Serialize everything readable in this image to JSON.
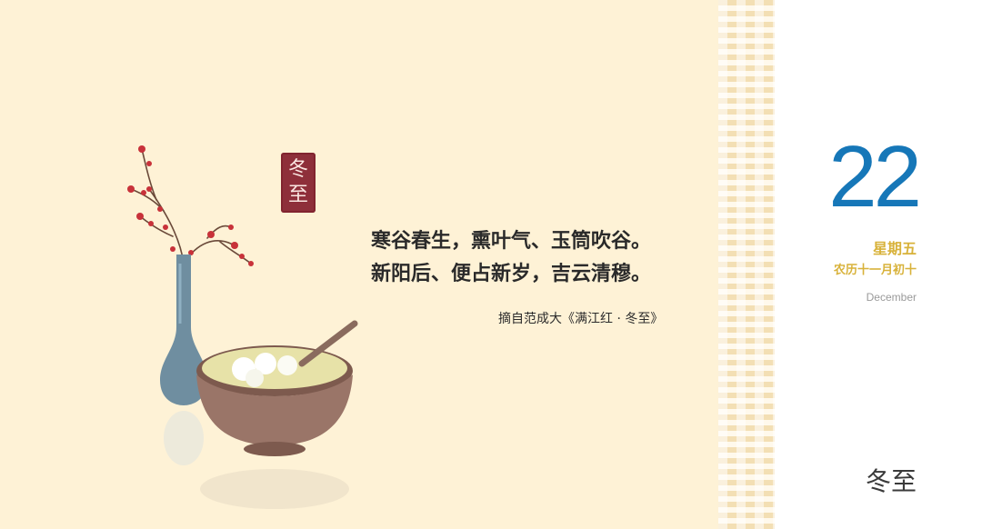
{
  "seal": {
    "line1": "冬",
    "line2": "至"
  },
  "poem": {
    "line1": "寒谷春生，熏叶气、玉筒吹谷。",
    "line2": "新阳后、便占新岁，吉云清穆。"
  },
  "attribution": "摘自范成大《满江红 · 冬至》",
  "date": {
    "day": "22",
    "weekday": "星期五",
    "lunar": "农历十一月初十",
    "month_en": "December"
  },
  "solar_term": "冬至",
  "colors": {
    "background": "#fef2d6",
    "day_number": "#1677b8",
    "lunar_text": "#d8b23a",
    "seal": "#8e2f3a"
  }
}
